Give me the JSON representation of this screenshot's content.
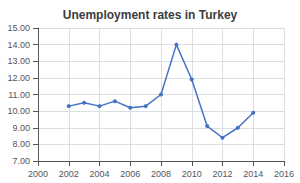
{
  "chart_data": {
    "type": "line",
    "title": "Unemployment rates in Turkey",
    "x": [
      2002,
      2003,
      2004,
      2005,
      2006,
      2007,
      2008,
      2009,
      2010,
      2011,
      2012,
      2013,
      2014
    ],
    "values": [
      10.3,
      10.5,
      10.3,
      10.6,
      10.2,
      10.3,
      11.0,
      14.0,
      11.9,
      9.1,
      8.4,
      9.0,
      9.9
    ],
    "color": "#4472C4",
    "marker": "circle",
    "xlim": [
      2000,
      2016
    ],
    "xticks": [
      2000,
      2002,
      2004,
      2006,
      2008,
      2010,
      2012,
      2014,
      2016
    ],
    "ylim": [
      7.0,
      15.0
    ],
    "yticks": [
      {
        "value": 7.0,
        "label": "7.00"
      },
      {
        "value": 8.0,
        "label": "8.00"
      },
      {
        "value": 9.0,
        "label": "9.00"
      },
      {
        "value": 10.0,
        "label": "10.00"
      },
      {
        "value": 11.0,
        "label": "11.00"
      },
      {
        "value": 12.0,
        "label": "12.00"
      },
      {
        "value": 13.0,
        "label": "13.00"
      },
      {
        "value": 14.0,
        "label": "14.00"
      },
      {
        "value": 15.0,
        "label": "15.00"
      }
    ],
    "grid": true
  }
}
